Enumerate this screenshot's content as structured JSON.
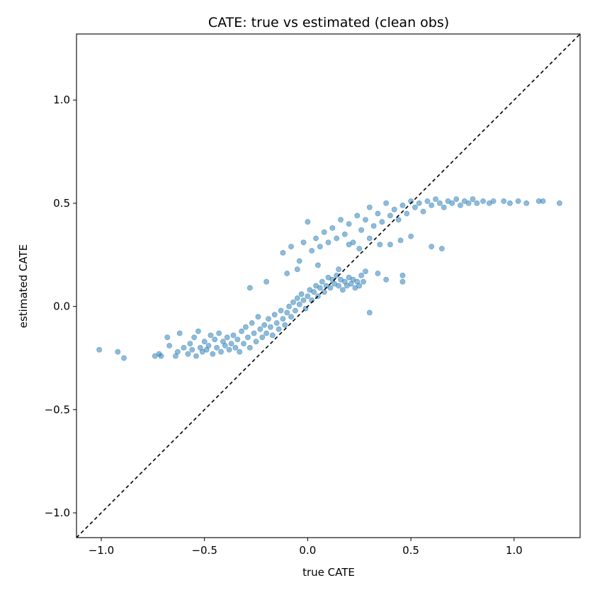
{
  "chart_data": {
    "type": "scatter",
    "title": "CATE: true vs estimated (clean obs)",
    "xlabel": "true CATE",
    "ylabel": "estimated CATE",
    "xlim": [
      -1.12,
      1.32
    ],
    "ylim": [
      -1.12,
      1.32
    ],
    "xticks": [
      -1.0,
      -0.5,
      0.0,
      0.5,
      1.0
    ],
    "xtick_labels": [
      "−1.0",
      "−0.5",
      "0.0",
      "0.5",
      "1.0"
    ],
    "yticks": [
      -1.0,
      -0.5,
      0.0,
      0.5,
      1.0
    ],
    "ytick_labels": [
      "−1.0",
      "−0.5",
      "0.0",
      "0.5",
      "1.0"
    ],
    "grid": false,
    "marker_color": "#1f77b4",
    "marker_alpha": 0.5,
    "reference_line": {
      "type": "identity",
      "style": "dashed",
      "color": "#000000"
    },
    "series": [
      {
        "points": [
          [
            -1.01,
            -0.21
          ],
          [
            -0.92,
            -0.22
          ],
          [
            -0.89,
            -0.25
          ],
          [
            -0.74,
            -0.24
          ],
          [
            -0.72,
            -0.23
          ],
          [
            -0.71,
            -0.24
          ],
          [
            -0.68,
            -0.15
          ],
          [
            -0.67,
            -0.19
          ],
          [
            -0.64,
            -0.24
          ],
          [
            -0.63,
            -0.22
          ],
          [
            -0.62,
            -0.13
          ],
          [
            -0.6,
            -0.2
          ],
          [
            -0.58,
            -0.23
          ],
          [
            -0.57,
            -0.18
          ],
          [
            -0.56,
            -0.21
          ],
          [
            -0.55,
            -0.15
          ],
          [
            -0.54,
            -0.24
          ],
          [
            -0.53,
            -0.12
          ],
          [
            -0.52,
            -0.2
          ],
          [
            -0.51,
            -0.22
          ],
          [
            -0.5,
            -0.17
          ],
          [
            -0.49,
            -0.21
          ],
          [
            -0.48,
            -0.19
          ],
          [
            -0.47,
            -0.14
          ],
          [
            -0.46,
            -0.23
          ],
          [
            -0.45,
            -0.16
          ],
          [
            -0.44,
            -0.2
          ],
          [
            -0.43,
            -0.13
          ],
          [
            -0.42,
            -0.22
          ],
          [
            -0.41,
            -0.17
          ],
          [
            -0.4,
            -0.19
          ],
          [
            -0.39,
            -0.15
          ],
          [
            -0.38,
            -0.21
          ],
          [
            -0.37,
            -0.18
          ],
          [
            -0.36,
            -0.14
          ],
          [
            -0.35,
            -0.2
          ],
          [
            -0.34,
            -0.16
          ],
          [
            -0.33,
            -0.22
          ],
          [
            -0.32,
            -0.12
          ],
          [
            -0.31,
            -0.18
          ],
          [
            -0.3,
            -0.1
          ],
          [
            -0.29,
            -0.15
          ],
          [
            -0.28,
            -0.2
          ],
          [
            -0.27,
            -0.08
          ],
          [
            -0.26,
            -0.13
          ],
          [
            -0.25,
            -0.17
          ],
          [
            -0.24,
            -0.05
          ],
          [
            -0.23,
            -0.11
          ],
          [
            -0.22,
            -0.15
          ],
          [
            -0.21,
            -0.09
          ],
          [
            -0.2,
            -0.13
          ],
          [
            -0.19,
            -0.06
          ],
          [
            -0.18,
            -0.1
          ],
          [
            -0.17,
            -0.14
          ],
          [
            -0.16,
            -0.04
          ],
          [
            -0.15,
            -0.08
          ],
          [
            -0.14,
            -0.11
          ],
          [
            -0.13,
            -0.02
          ],
          [
            -0.12,
            -0.06
          ],
          [
            -0.11,
            -0.09
          ],
          [
            -0.1,
            -0.03
          ],
          [
            -0.09,
            0.0
          ],
          [
            -0.08,
            -0.05
          ],
          [
            -0.07,
            0.02
          ],
          [
            -0.06,
            -0.02
          ],
          [
            -0.05,
            0.04
          ],
          [
            -0.04,
            0.01
          ],
          [
            -0.03,
            0.06
          ],
          [
            -0.02,
            0.03
          ],
          [
            -0.01,
            -0.01
          ],
          [
            0.0,
            0.05
          ],
          [
            0.01,
            0.08
          ],
          [
            0.02,
            0.03
          ],
          [
            0.03,
            0.07
          ],
          [
            0.04,
            0.1
          ],
          [
            0.05,
            0.05
          ],
          [
            0.06,
            0.09
          ],
          [
            0.07,
            0.12
          ],
          [
            0.08,
            0.07
          ],
          [
            0.09,
            0.1
          ],
          [
            0.1,
            0.14
          ],
          [
            0.11,
            0.09
          ],
          [
            0.12,
            0.13
          ],
          [
            0.13,
            0.11
          ],
          [
            0.14,
            0.15
          ],
          [
            0.15,
            0.1
          ],
          [
            0.16,
            0.13
          ],
          [
            0.17,
            0.08
          ],
          [
            0.18,
            0.12
          ],
          [
            0.19,
            0.1
          ],
          [
            0.2,
            0.14
          ],
          [
            0.21,
            0.11
          ],
          [
            0.22,
            0.13
          ],
          [
            0.23,
            0.09
          ],
          [
            0.24,
            0.12
          ],
          [
            0.25,
            0.1
          ],
          [
            0.26,
            0.15
          ],
          [
            0.27,
            0.12
          ],
          [
            0.28,
            0.17
          ],
          [
            0.3,
            -0.03
          ],
          [
            -0.12,
            0.26
          ],
          [
            -0.08,
            0.29
          ],
          [
            -0.04,
            0.22
          ],
          [
            -0.02,
            0.31
          ],
          [
            0.0,
            0.41
          ],
          [
            0.02,
            0.27
          ],
          [
            0.04,
            0.33
          ],
          [
            0.06,
            0.29
          ],
          [
            0.08,
            0.36
          ],
          [
            0.1,
            0.31
          ],
          [
            0.12,
            0.38
          ],
          [
            0.14,
            0.33
          ],
          [
            0.16,
            0.42
          ],
          [
            0.18,
            0.35
          ],
          [
            0.2,
            0.4
          ],
          [
            0.22,
            0.31
          ],
          [
            0.24,
            0.44
          ],
          [
            0.26,
            0.37
          ],
          [
            0.28,
            0.42
          ],
          [
            0.3,
            0.48
          ],
          [
            0.32,
            0.39
          ],
          [
            0.34,
            0.45
          ],
          [
            0.36,
            0.41
          ],
          [
            0.38,
            0.5
          ],
          [
            0.4,
            0.44
          ],
          [
            0.42,
            0.47
          ],
          [
            0.44,
            0.42
          ],
          [
            0.46,
            0.49
          ],
          [
            0.48,
            0.45
          ],
          [
            0.5,
            0.51
          ],
          [
            0.52,
            0.48
          ],
          [
            0.54,
            0.5
          ],
          [
            0.56,
            0.46
          ],
          [
            0.58,
            0.51
          ],
          [
            0.6,
            0.49
          ],
          [
            0.62,
            0.52
          ],
          [
            0.64,
            0.5
          ],
          [
            0.66,
            0.48
          ],
          [
            0.68,
            0.51
          ],
          [
            0.7,
            0.5
          ],
          [
            0.72,
            0.52
          ],
          [
            0.74,
            0.49
          ],
          [
            0.76,
            0.51
          ],
          [
            0.78,
            0.5
          ],
          [
            0.8,
            0.52
          ],
          [
            0.82,
            0.5
          ],
          [
            0.85,
            0.51
          ],
          [
            0.88,
            0.5
          ],
          [
            0.9,
            0.51
          ],
          [
            0.95,
            0.51
          ],
          [
            0.98,
            0.5
          ],
          [
            1.02,
            0.51
          ],
          [
            1.06,
            0.5
          ],
          [
            1.12,
            0.51
          ],
          [
            1.14,
            0.51
          ],
          [
            1.22,
            0.5
          ],
          [
            0.2,
            0.3
          ],
          [
            0.25,
            0.28
          ],
          [
            0.3,
            0.33
          ],
          [
            0.35,
            0.3
          ],
          [
            0.4,
            0.3
          ],
          [
            0.45,
            0.32
          ],
          [
            0.5,
            0.34
          ],
          [
            0.6,
            0.29
          ],
          [
            0.65,
            0.28
          ],
          [
            0.34,
            0.16
          ],
          [
            0.38,
            0.13
          ],
          [
            0.46,
            0.15
          ],
          [
            0.46,
            0.12
          ],
          [
            0.15,
            0.18
          ],
          [
            0.05,
            0.2
          ],
          [
            -0.05,
            0.18
          ],
          [
            -0.1,
            0.16
          ],
          [
            -0.2,
            0.12
          ],
          [
            -0.28,
            0.09
          ]
        ]
      }
    ]
  }
}
